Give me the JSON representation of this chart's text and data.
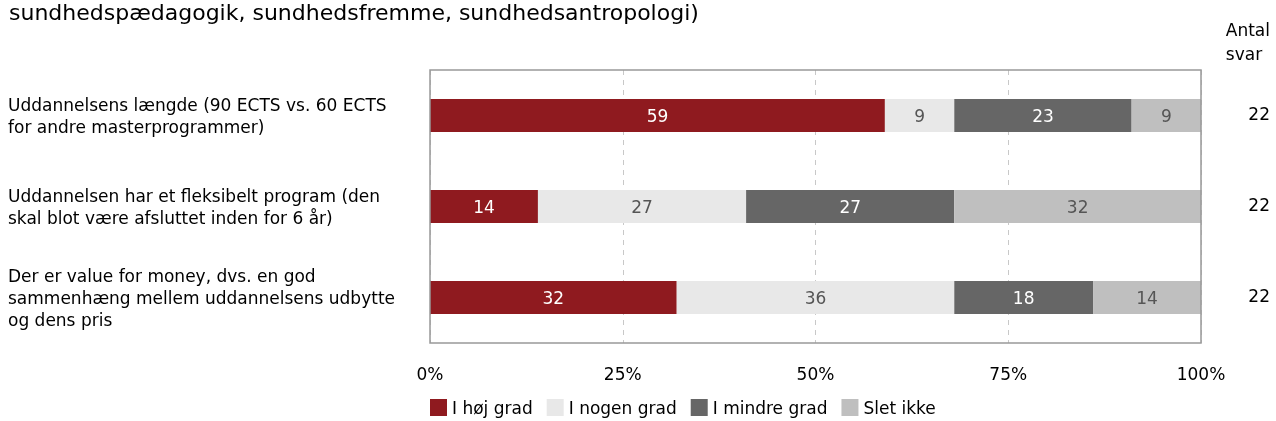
{
  "chart_data": {
    "type": "bar",
    "orientation": "horizontal",
    "stacked": true,
    "title": "sundhedspædagogik, sundhedsfremme, sundhedsantropologi)",
    "categories": [
      "Uddannelsens længde (90 ECTS vs. 60 ECTS for andre masterprogrammer)",
      "Uddannelsen har et fleksibelt program (den skal blot være afsluttet inden for 6 år)",
      "Der er value for money, dvs. en god sammenhæng mellem uddannelsens udbytte og dens pris"
    ],
    "series": [
      {
        "name": "I høj grad",
        "color": "#8f1a1f",
        "values": [
          59,
          14,
          32
        ]
      },
      {
        "name": "I nogen grad",
        "color": "#e8e8e8",
        "values": [
          9,
          27,
          36
        ]
      },
      {
        "name": "I mindre grad",
        "color": "#666666",
        "values": [
          23,
          27,
          18
        ]
      },
      {
        "name": "Slet ikke",
        "color": "#bfbfbf",
        "values": [
          9,
          32,
          14
        ]
      }
    ],
    "xlim": [
      0,
      100
    ],
    "xticks": [
      {
        "value": 0,
        "label": "0%"
      },
      {
        "value": 25,
        "label": "25%"
      },
      {
        "value": 50,
        "label": "50%"
      },
      {
        "value": 75,
        "label": "75%"
      },
      {
        "value": 100,
        "label": "100%"
      }
    ],
    "grid": "x",
    "legend": "bottom",
    "data_labels": true,
    "annotations": [
      "Antal svar",
      "22",
      "22",
      "22"
    ]
  }
}
